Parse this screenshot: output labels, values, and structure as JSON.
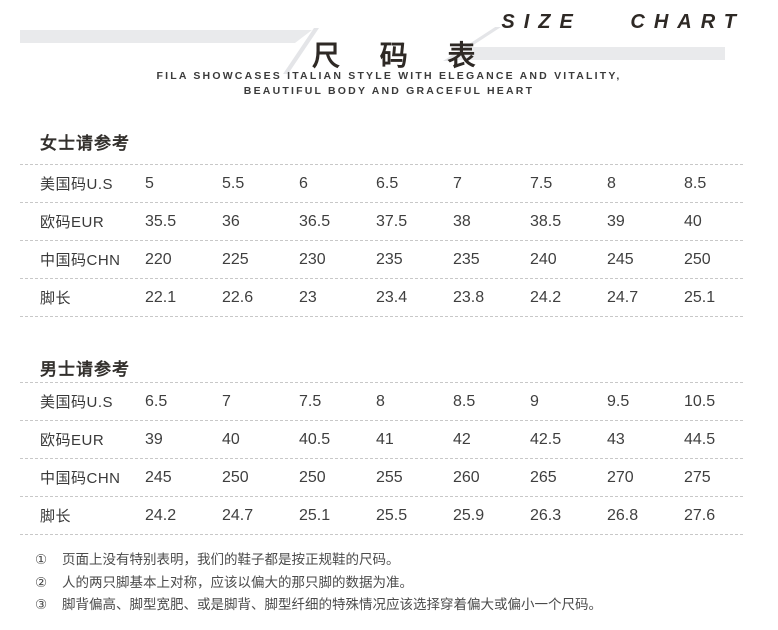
{
  "header": {
    "title_cn": "尺 码 表",
    "title_en": "SIZE CHART",
    "subtitle_line1": "FILA SHOWCASES ITALIAN STYLE WITH ELEGANCE AND VITALITY,",
    "subtitle_line2": "BEAUTIFUL BODY AND GRACEFUL HEART"
  },
  "colors": {
    "band": "#e9eaec",
    "title_text": "#2e2925",
    "table_text": "#3f3f3f",
    "divider": "#c8c8c8"
  },
  "women": {
    "section_title": "女士请参考",
    "rows": [
      {
        "label": "美国码U.S",
        "values": [
          "5",
          "5.5",
          "6",
          "6.5",
          "7",
          "7.5",
          "8",
          "8.5"
        ]
      },
      {
        "label": "欧码EUR",
        "values": [
          "35.5",
          "36",
          "36.5",
          "37.5",
          "38",
          "38.5",
          "39",
          "40"
        ]
      },
      {
        "label": "中国码CHN",
        "values": [
          "220",
          "225",
          "230",
          "235",
          "235",
          "240",
          "245",
          "250"
        ]
      },
      {
        "label": "脚长",
        "values": [
          "22.1",
          "22.6",
          "23",
          "23.4",
          "23.8",
          "24.2",
          "24.7",
          "25.1"
        ]
      }
    ]
  },
  "men": {
    "section_title": "男士请参考",
    "rows": [
      {
        "label": "美国码U.S",
        "values": [
          "6.5",
          "7",
          "7.5",
          "8",
          "8.5",
          "9",
          "9.5",
          "10.5"
        ]
      },
      {
        "label": "欧码EUR",
        "values": [
          "39",
          "40",
          "40.5",
          "41",
          "42",
          "42.5",
          "43",
          "44.5"
        ]
      },
      {
        "label": "中国码CHN",
        "values": [
          "245",
          "250",
          "250",
          "255",
          "260",
          "265",
          "270",
          "275"
        ]
      },
      {
        "label": "脚长",
        "values": [
          "24.2",
          "24.7",
          "25.1",
          "25.5",
          "25.9",
          "26.3",
          "26.8",
          "27.6"
        ]
      }
    ]
  },
  "notes": [
    {
      "marker": "①",
      "text": "页面上没有特别表明，我们的鞋子都是按正规鞋的尺码。"
    },
    {
      "marker": "②",
      "text": "人的两只脚基本上对称，应该以偏大的那只脚的数据为准。"
    },
    {
      "marker": "③",
      "text": "脚背偏高、脚型宽肥、或是脚背、脚型纤细的特殊情况应该选择穿着偏大或偏小一个尺码。"
    }
  ]
}
